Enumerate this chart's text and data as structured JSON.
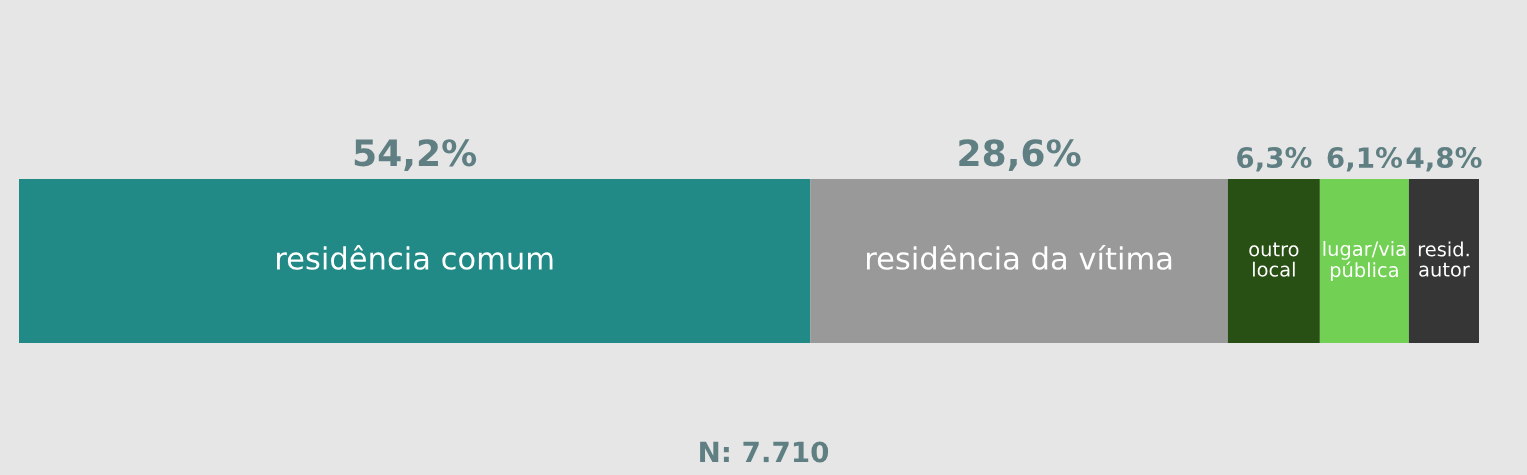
{
  "chart_data": {
    "type": "bar",
    "orientation": "horizontal",
    "stacked": true,
    "categories": [
      null
    ],
    "series": [
      {
        "name": "residência comum",
        "color": "#218a87",
        "values": [
          54.2
        ],
        "value_labels": [
          "54,2%"
        ]
      },
      {
        "name": "residência da vítima",
        "color": "#999999",
        "values": [
          28.6
        ],
        "value_labels": [
          "28,6%"
        ]
      },
      {
        "name": "outro local",
        "color": "#284f14",
        "values": [
          6.3
        ],
        "value_labels": [
          "6,3%"
        ]
      },
      {
        "name": "lugar/via pública",
        "color": "#72d155",
        "values": [
          6.1
        ],
        "value_labels": [
          "6,1%"
        ]
      },
      {
        "name": "resid. autor",
        "color": "#363636",
        "values": [
          4.8
        ],
        "value_labels": [
          "4,8%"
        ]
      }
    ],
    "annotations": [
      "N: 7.710"
    ],
    "legend": false
  }
}
